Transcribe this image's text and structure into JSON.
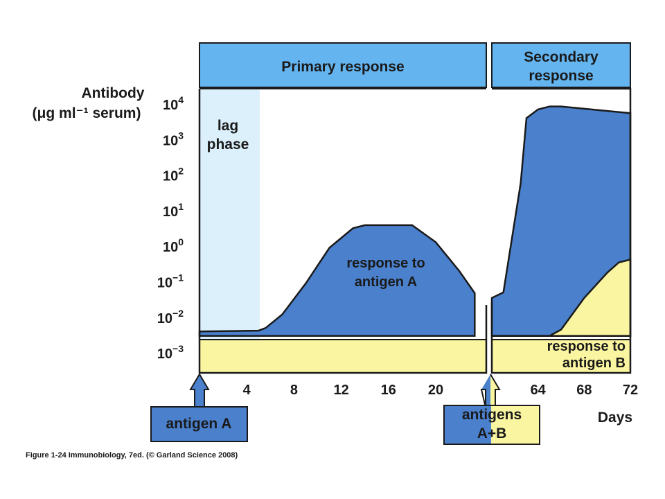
{
  "chart_data": {
    "type": "area",
    "ylabel": [
      "Antibody",
      "(μg ml⁻¹ serum)"
    ],
    "y_scale": "log10",
    "y_ticks": [
      {
        "base": "10",
        "exp": "4",
        "value": 10000
      },
      {
        "base": "10",
        "exp": "3",
        "value": 1000
      },
      {
        "base": "10",
        "exp": "2",
        "value": 100
      },
      {
        "base": "10",
        "exp": "1",
        "value": 10
      },
      {
        "base": "10",
        "exp": "0",
        "value": 1
      },
      {
        "base": "10",
        "exp": "−1",
        "value": 0.1
      },
      {
        "base": "10",
        "exp": "−2",
        "value": 0.01
      },
      {
        "base": "10",
        "exp": "−3",
        "value": 0.001
      }
    ],
    "xlabel": "Days",
    "x_ticks_primary": [
      "4",
      "8",
      "12",
      "16",
      "20"
    ],
    "x_ticks_secondary": [
      "64",
      "68",
      "72"
    ],
    "phases": {
      "primary": "Primary response",
      "secondary": [
        "Secondary",
        "response"
      ],
      "lag": [
        "lag",
        "phase"
      ]
    },
    "series": [
      {
        "name": "response to antigen A",
        "color": "#4a80cc",
        "primary": [
          {
            "x": 0,
            "y": 0.004
          },
          {
            "x": 5,
            "y": 0.0042
          },
          {
            "x": 5.6,
            "y": 0.005
          },
          {
            "x": 7,
            "y": 0.012
          },
          {
            "x": 9,
            "y": 0.09
          },
          {
            "x": 11,
            "y": 0.9
          },
          {
            "x": 13,
            "y": 3.2
          },
          {
            "x": 14,
            "y": 3.9
          },
          {
            "x": 18,
            "y": 3.9
          },
          {
            "x": 20,
            "y": 1.3
          },
          {
            "x": 22,
            "y": 0.2
          },
          {
            "x": 23.3,
            "y": 0.048
          }
        ],
        "secondary": [
          {
            "x": 60,
            "y": 0.035
          },
          {
            "x": 61,
            "y": 0.05
          },
          {
            "x": 62.5,
            "y": 60
          },
          {
            "x": 63,
            "y": 4000
          },
          {
            "x": 64,
            "y": 7000
          },
          {
            "x": 65,
            "y": 8500
          },
          {
            "x": 66,
            "y": 8500
          },
          {
            "x": 72,
            "y": 5500
          }
        ]
      },
      {
        "name": "response to antigen B",
        "color": "#faf5a0",
        "secondary": [
          {
            "x": 60,
            "y": 0.003
          },
          {
            "x": 65,
            "y": 0.003
          },
          {
            "x": 66,
            "y": 0.0045
          },
          {
            "x": 68,
            "y": 0.035
          },
          {
            "x": 70,
            "y": 0.18
          },
          {
            "x": 71,
            "y": 0.35
          },
          {
            "x": 72,
            "y": 0.42
          }
        ]
      }
    ],
    "baseline_level": 0.003,
    "annotations": {
      "response_a": [
        "response to",
        "antigen A"
      ],
      "response_b": [
        "response to",
        "antigen B"
      ]
    },
    "injections": {
      "antigen_a": "antigen A",
      "antigens_ab": [
        "antigens",
        "A+B"
      ]
    }
  },
  "caption": "Figure 1-24  Immunobiology, 7ed. (© Garland Science 2008)",
  "colors": {
    "phase_header": "#64b4f0",
    "antigen_a": "#4a80cc",
    "antigen_b": "#faf5a0",
    "lag_shade": "#dcf0fc",
    "outline": "#1a1a1a"
  }
}
